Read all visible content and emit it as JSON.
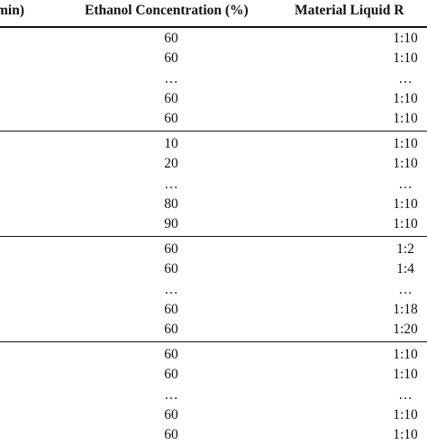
{
  "table": {
    "headers": [
      "min)",
      "Ethanol Concentration (%)",
      "Material Liquid R"
    ],
    "groups": [
      {
        "rows": [
          [
            "60",
            "1:10"
          ],
          [
            "60",
            "1:10"
          ],
          [
            "…",
            "…"
          ],
          [
            "60",
            "1:10"
          ],
          [
            "60",
            "1:10"
          ]
        ]
      },
      {
        "rows": [
          [
            "10",
            "1:10"
          ],
          [
            "20",
            "1:10"
          ],
          [
            "…",
            "…"
          ],
          [
            "80",
            "1:10"
          ],
          [
            "90",
            "1:10"
          ]
        ]
      },
      {
        "rows": [
          [
            "60",
            "1:2"
          ],
          [
            "60",
            "1:4"
          ],
          [
            "…",
            "…"
          ],
          [
            "60",
            "1:18"
          ],
          [
            "60",
            "1:20"
          ]
        ]
      },
      {
        "rows": [
          [
            "60",
            "1:10"
          ],
          [
            "60",
            "1:10"
          ],
          [
            "…",
            "…"
          ],
          [
            "60",
            "1:10"
          ],
          [
            "60",
            "1:10"
          ]
        ]
      }
    ]
  }
}
